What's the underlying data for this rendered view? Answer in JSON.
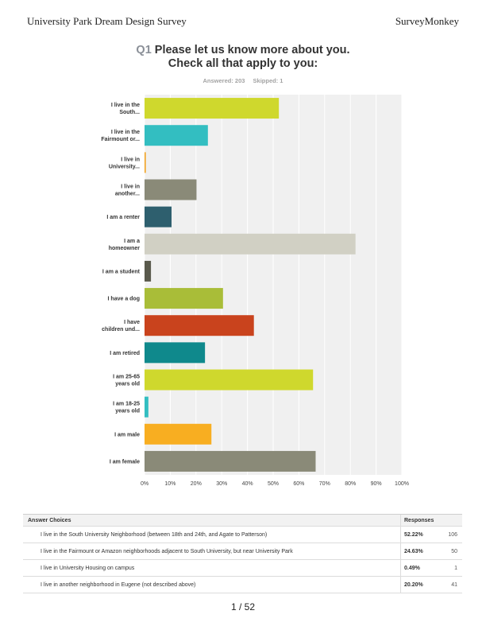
{
  "header": {
    "left": "University Park Dream Design Survey",
    "right": "SurveyMonkey"
  },
  "question": {
    "number": "Q1",
    "line1": "Please let us know more about you.",
    "line2": "Check all that apply to you:",
    "answered": "Answered: 203",
    "skipped": "Skipped: 1"
  },
  "chart_data": {
    "type": "bar",
    "orientation": "horizontal",
    "categories": [
      [
        "I live in the",
        "South..."
      ],
      [
        "I live in the",
        "Fairmount or..."
      ],
      [
        "I live in",
        "University..."
      ],
      [
        "I live in",
        "another..."
      ],
      [
        "I am a renter"
      ],
      [
        "I am a",
        "homeowner"
      ],
      [
        "I am a student"
      ],
      [
        "I have a dog"
      ],
      [
        "I have",
        "children und..."
      ],
      [
        "I am retired"
      ],
      [
        "I am 25-65",
        "years old"
      ],
      [
        "I am 18-25",
        "years old"
      ],
      [
        "I am male"
      ],
      [
        "I am female"
      ]
    ],
    "values": [
      52.22,
      24.63,
      0.49,
      20.2,
      10.5,
      82,
      2.5,
      30.5,
      42.5,
      23.5,
      65.5,
      1.5,
      26,
      66.5
    ],
    "colors": [
      "#cfd82d",
      "#33bec1",
      "#f2a320",
      "#8a8a78",
      "#2e5f6e",
      "#d1d0c4",
      "#5a5a4c",
      "#a9bd38",
      "#c9431d",
      "#0f898c",
      "#cfd82d",
      "#33bec1",
      "#f8ae21",
      "#8a8a78"
    ],
    "xlim": [
      0,
      100
    ],
    "xticks": [
      "0%",
      "10%",
      "20%",
      "30%",
      "40%",
      "50%",
      "60%",
      "70%",
      "80%",
      "90%",
      "100%"
    ],
    "grid": true
  },
  "table": {
    "headers": [
      "Answer Choices",
      "Responses"
    ],
    "rows": [
      {
        "choice": "I live in the South University Neighborhood (between 18th and 24th, and Agate to Patterson)",
        "percent": "52.22%",
        "count": "106"
      },
      {
        "choice": "I live in the Fairmount or Amazon neighborhoods adjacent to South University, but near University Park",
        "percent": "24.63%",
        "count": "50"
      },
      {
        "choice": "I live in University Housing on campus",
        "percent": "0.49%",
        "count": "1"
      },
      {
        "choice": "I live in another neighborhood in Eugene (not described above)",
        "percent": "20.20%",
        "count": "41"
      }
    ]
  },
  "page": {
    "indicator": "1 / 52"
  }
}
